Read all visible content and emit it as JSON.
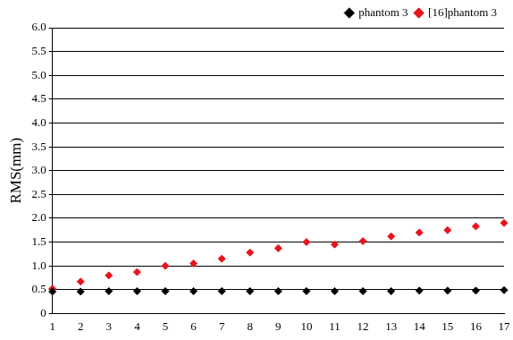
{
  "chart_data": {
    "type": "scatter",
    "y_label": "RMS(mm)",
    "x": [
      1,
      2,
      3,
      4,
      5,
      6,
      7,
      8,
      9,
      10,
      11,
      12,
      13,
      14,
      15,
      16,
      17
    ],
    "series": [
      {
        "name": "phantom 3",
        "color": "#000000",
        "marker": "diamond",
        "values": [
          0.46,
          0.46,
          0.47,
          0.47,
          0.47,
          0.47,
          0.47,
          0.47,
          0.47,
          0.47,
          0.47,
          0.47,
          0.47,
          0.48,
          0.48,
          0.48,
          0.49
        ]
      },
      {
        "name": "[16]phantom 3",
        "color": "#e8141c",
        "marker": "diamond",
        "values": [
          0.52,
          0.67,
          0.8,
          0.87,
          1.0,
          1.05,
          1.15,
          1.28,
          1.37,
          1.5,
          1.45,
          1.52,
          1.62,
          1.7,
          1.75,
          1.83,
          1.9
        ]
      }
    ],
    "xlim": [
      1,
      17
    ],
    "xticks": [
      1,
      2,
      3,
      4,
      5,
      6,
      7,
      8,
      9,
      10,
      11,
      12,
      13,
      14,
      15,
      16,
      17
    ],
    "ylim": [
      0,
      6
    ],
    "yticks": [
      0,
      0.5,
      {
        "value": 1,
        "label": "1.0"
      },
      1.5,
      {
        "value": 2,
        "label": "2.0"
      },
      2.5,
      {
        "value": 3,
        "label": "3.0"
      },
      3.5,
      {
        "value": 4,
        "label": "4.0"
      },
      4.5,
      {
        "value": 5,
        "label": "5.0"
      },
      5.5,
      {
        "value": 6,
        "label": "6.0"
      }
    ],
    "grid": true,
    "legend": "top-right"
  }
}
